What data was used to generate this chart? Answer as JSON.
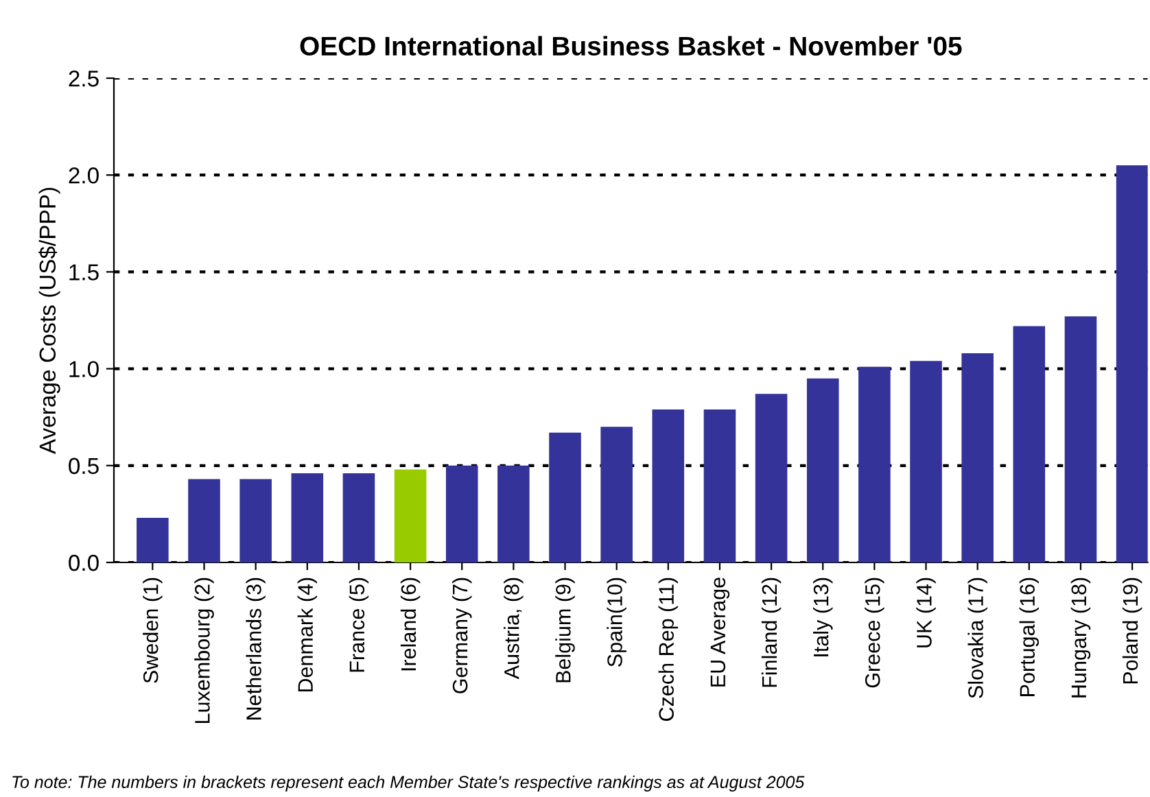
{
  "chart_data": {
    "type": "bar",
    "title": "OECD International Business Basket - November '05",
    "ylabel": "Average Costs (US$/PPP)",
    "categories": [
      "Sweden (1)",
      "Luxembourg (2)",
      "Netherlands (3)",
      "Denmark (4)",
      "France (5)",
      "Ireland (6)",
      "Germany (7)",
      "Austria, (8)",
      "Belgium (9)",
      "Spain(10)",
      "Czech Rep (11)",
      "EU Average",
      "Finland (12)",
      "Italy (13)",
      "Greece (15)",
      "UK (14)",
      "Slovakia (17)",
      "Portugal (16)",
      "Hungary (18)",
      "Poland (19)"
    ],
    "values": [
      0.23,
      0.43,
      0.43,
      0.46,
      0.46,
      0.48,
      0.5,
      0.5,
      0.67,
      0.7,
      0.79,
      0.79,
      0.87,
      0.95,
      1.01,
      1.04,
      1.08,
      1.22,
      1.27,
      2.05
    ],
    "colors": [
      "#333399",
      "#333399",
      "#333399",
      "#333399",
      "#333399",
      "#99cc00",
      "#333399",
      "#333399",
      "#333399",
      "#333399",
      "#333399",
      "#333399",
      "#333399",
      "#333399",
      "#333399",
      "#333399",
      "#333399",
      "#333399",
      "#333399",
      "#333399"
    ],
    "ylim": [
      0,
      2.5
    ],
    "yticks": [
      {
        "value": 0,
        "label": "0.0"
      },
      {
        "value": 0.5,
        "label": "0.5"
      },
      {
        "value": 1,
        "label": "1.0"
      },
      {
        "value": 1.5,
        "label": "1.5"
      },
      {
        "value": 2,
        "label": "2.0"
      },
      {
        "value": 2.5,
        "label": "2.5"
      }
    ],
    "grid": "y",
    "legend": false,
    "annotations": [
      "To note: The numbers in brackets represent each Member State's respective rankings as at August 2005"
    ]
  }
}
